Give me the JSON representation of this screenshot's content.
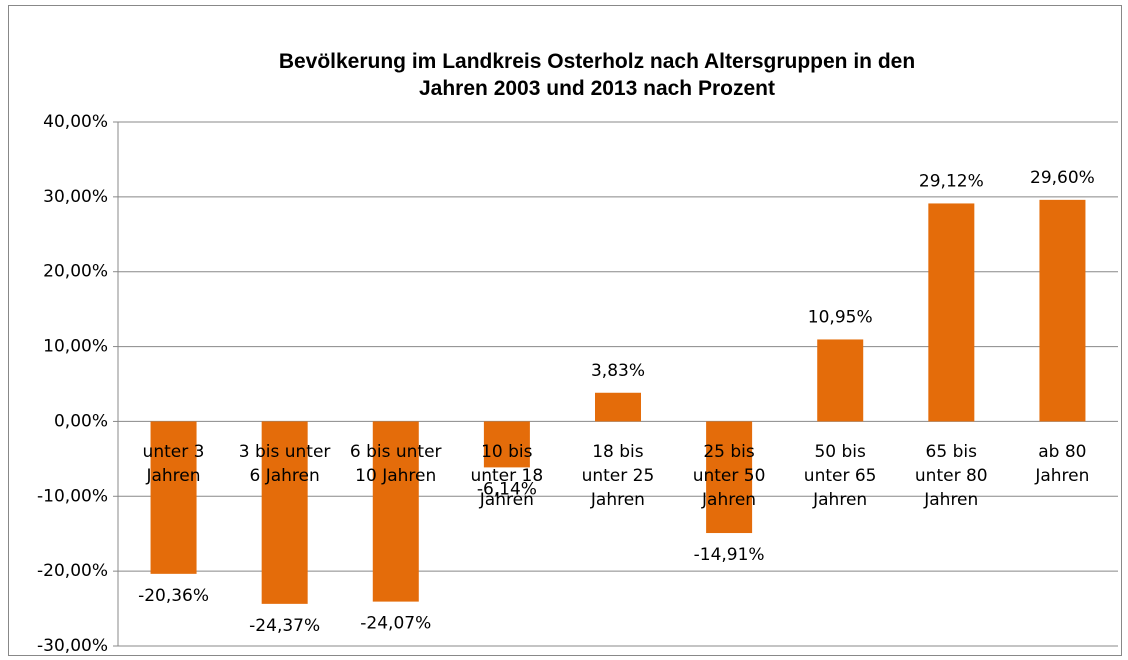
{
  "chart_data": {
    "type": "bar",
    "title": "Bevölkerung im Landkreis Osterholz  nach Altersgruppen in den\nJahren 2003 und 2013 nach Prozent",
    "categories": [
      "unter 3\nJahren",
      "3 bis unter\n6 Jahren",
      "6 bis unter\n10 Jahren",
      "10 bis\nunter 18\nJahren",
      "18 bis\nunter 25\nJahren",
      "25 bis\nunter 50\nJahren",
      "50 bis\nunter 65\nJahren",
      "65 bis\nunter 80\nJahren",
      "ab 80\nJahren"
    ],
    "values": [
      -20.36,
      -24.37,
      -24.07,
      -6.14,
      3.83,
      -14.91,
      10.95,
      29.12,
      29.6
    ],
    "value_labels": [
      "-20,36%",
      "-24,37%",
      "-24,07%",
      "-6,14%",
      "3,83%",
      "-14,91%",
      "10,95%",
      "29,12%",
      "29,60%"
    ],
    "color": "#e46c0a",
    "ylim": [
      -30,
      40
    ],
    "yticks": [
      {
        "value": -30,
        "label": "-30,00%"
      },
      {
        "value": -20,
        "label": "-20,00%"
      },
      {
        "value": -10,
        "label": "-10,00%"
      },
      {
        "value": 0,
        "label": "0,00%"
      },
      {
        "value": 10,
        "label": "10,00%"
      },
      {
        "value": 20,
        "label": "20,00%"
      },
      {
        "value": 30,
        "label": "30,00%"
      },
      {
        "value": 40,
        "label": "40,00%"
      }
    ],
    "grid": true
  }
}
